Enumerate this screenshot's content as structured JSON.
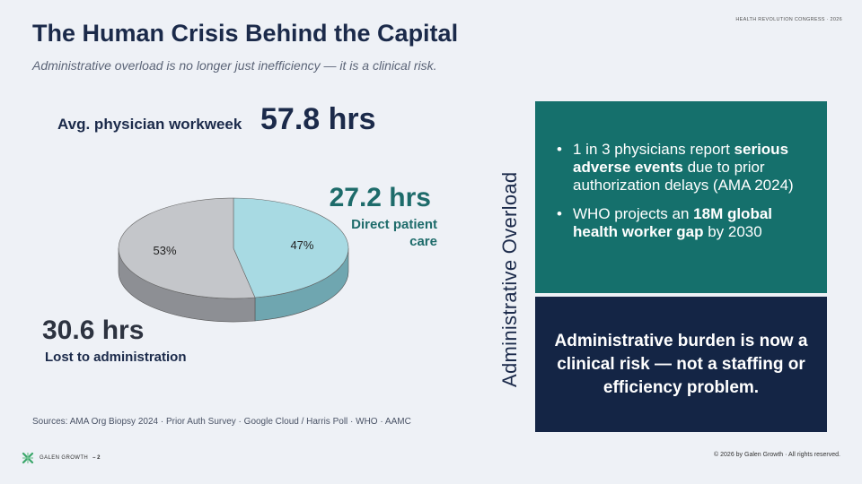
{
  "header": {
    "tag": "HEALTH REVOLUTION CONGRESS · 2026"
  },
  "title": "The Human Crisis Behind the Capital",
  "subtitle": "Administrative overload is no longer just inefficiency — it is a clinical risk.",
  "workweek": {
    "label": "Avg. physician workweek",
    "value": "57.8 hrs"
  },
  "direct": {
    "value": "27.2 hrs",
    "label": "Direct patient care"
  },
  "admin": {
    "value": "30.6 hrs",
    "label": "Lost to administration"
  },
  "chart_data": {
    "type": "pie",
    "categories": [
      "Direct patient care",
      "Lost to administration"
    ],
    "values": [
      47,
      53
    ],
    "data_labels": [
      "47%",
      "53%"
    ],
    "colors": [
      "#a8dae3",
      "#c4c6ca"
    ]
  },
  "sources": "Sources: AMA Org Biopsy 2024 · Prior Auth Survey · Google Cloud / Harris Poll · WHO · AAMC",
  "side_heading": "Administrative Overload",
  "bullets": [
    {
      "pre": "1 in 3 physicians report ",
      "bold": "serious adverse events",
      "post": " due to prior authorization delays (AMA 2024)"
    },
    {
      "pre": "WHO projects an ",
      "bold": "18M global health worker gap",
      "post": " by 2030"
    }
  ],
  "callout": "Administrative burden is now a clinical risk — not a staffing or efficiency problem.",
  "footer": {
    "logo_text": "GALEN GROWTH",
    "page": "– 2",
    "copyright": "© 2026 by Galen Growth · All rights reserved."
  },
  "theme": {
    "teal": "#15706c",
    "navy": "#142545",
    "logo_green": "#3aa66a"
  }
}
